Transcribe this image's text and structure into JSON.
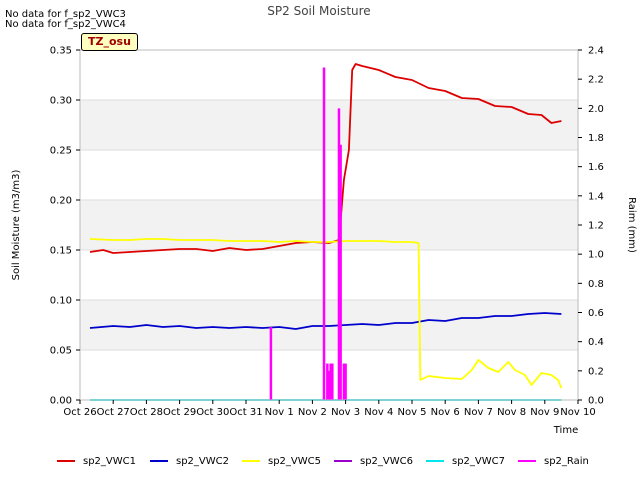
{
  "notes": [
    "No data for f_sp2_VWC3",
    "No data for f_sp2_VWC4"
  ],
  "badge": "TZ_osu",
  "chart_data": {
    "type": "line",
    "title": "SP2 Soil Moisture",
    "xlabel": "Time",
    "ylabel": "Soil Moisture (m3/m3)",
    "y2label": "Raim (mm)",
    "xlim": [
      0,
      15
    ],
    "ylim": [
      0,
      0.35
    ],
    "y2lim": [
      0,
      2.4
    ],
    "x_tick_values": [
      0,
      1,
      2,
      3,
      4,
      5,
      6,
      7,
      8,
      9,
      10,
      11,
      12,
      13,
      14,
      15
    ],
    "x_tick_labels": [
      "Oct 26",
      "Oct 27",
      "Oct 28",
      "Oct 29",
      "Oct 30",
      "Oct 31",
      "Nov 1",
      "Nov 2",
      "Nov 3",
      "Nov 4",
      "Nov 5",
      "Nov 6",
      "Nov 7",
      "Nov 8",
      "Nov 9",
      "Nov 10"
    ],
    "y_ticks": [
      0.0,
      0.05,
      0.1,
      0.15,
      0.2,
      0.25,
      0.3,
      0.35
    ],
    "y_tick_labels": [
      "0.00",
      "0.05",
      "0.10",
      "0.15",
      "0.20",
      "0.25",
      "0.30",
      "0.35"
    ],
    "y2_ticks": [
      0.0,
      0.2,
      0.4,
      0.6,
      0.8,
      1.0,
      1.2,
      1.4,
      1.6,
      1.8,
      2.0,
      2.2,
      2.4
    ],
    "y2_tick_labels": [
      "0.0",
      "0.2",
      "0.4",
      "0.6",
      "0.8",
      "1.0",
      "1.2",
      "1.4",
      "1.6",
      "1.8",
      "2.0",
      "2.2",
      "2.4"
    ],
    "grid": "horizontal bands",
    "legend_position": "bottom",
    "series": [
      {
        "name": "sp2_VWC1",
        "color": "#dd0000",
        "axis": "left",
        "x": [
          0.3,
          0.7,
          1.0,
          1.5,
          2.0,
          2.5,
          3.0,
          3.5,
          4.0,
          4.5,
          5.0,
          5.5,
          6.0,
          6.5,
          7.0,
          7.5,
          7.8,
          7.95,
          8.1,
          8.2,
          8.3,
          8.5,
          9.0,
          9.5,
          10.0,
          10.5,
          11.0,
          11.5,
          12.0,
          12.5,
          13.0,
          13.5,
          13.9,
          14.2,
          14.5
        ],
        "values": [
          0.148,
          0.15,
          0.147,
          0.148,
          0.149,
          0.15,
          0.151,
          0.151,
          0.149,
          0.152,
          0.15,
          0.151,
          0.154,
          0.157,
          0.158,
          0.157,
          0.16,
          0.22,
          0.25,
          0.33,
          0.336,
          0.334,
          0.33,
          0.323,
          0.32,
          0.312,
          0.309,
          0.302,
          0.301,
          0.294,
          0.293,
          0.286,
          0.285,
          0.277,
          0.279
        ]
      },
      {
        "name": "sp2_VWC2",
        "color": "#0000cc",
        "axis": "left",
        "x": [
          0.3,
          1.0,
          1.5,
          2.0,
          2.5,
          3.0,
          3.5,
          4.0,
          4.5,
          5.0,
          5.5,
          6.0,
          6.5,
          7.0,
          7.5,
          8.0,
          8.5,
          9.0,
          9.5,
          10.0,
          10.5,
          11.0,
          11.5,
          12.0,
          12.5,
          13.0,
          13.5,
          14.0,
          14.5
        ],
        "values": [
          0.072,
          0.074,
          0.073,
          0.075,
          0.073,
          0.074,
          0.072,
          0.073,
          0.072,
          0.073,
          0.072,
          0.073,
          0.071,
          0.074,
          0.074,
          0.075,
          0.076,
          0.075,
          0.077,
          0.077,
          0.08,
          0.079,
          0.082,
          0.082,
          0.084,
          0.084,
          0.086,
          0.087,
          0.086
        ]
      },
      {
        "name": "sp2_VWC5",
        "color": "#ffff00",
        "axis": "left",
        "x": [
          0.3,
          1.0,
          1.5,
          2.0,
          2.5,
          3.0,
          3.5,
          4.0,
          4.5,
          5.0,
          5.5,
          6.0,
          6.5,
          7.0,
          7.5,
          8.0,
          8.5,
          9.0,
          9.5,
          10.0,
          10.2,
          10.25,
          10.5,
          11.0,
          11.5,
          11.8,
          12.0,
          12.3,
          12.6,
          12.9,
          13.1,
          13.4,
          13.6,
          13.9,
          14.2,
          14.4,
          14.5
        ],
        "values": [
          0.161,
          0.16,
          0.16,
          0.161,
          0.161,
          0.16,
          0.16,
          0.16,
          0.159,
          0.159,
          0.159,
          0.158,
          0.159,
          0.158,
          0.158,
          0.159,
          0.159,
          0.159,
          0.158,
          0.158,
          0.157,
          0.02,
          0.024,
          0.022,
          0.021,
          0.03,
          0.04,
          0.032,
          0.028,
          0.038,
          0.03,
          0.025,
          0.015,
          0.027,
          0.025,
          0.02,
          0.012
        ]
      },
      {
        "name": "sp2_VWC6",
        "color": "#9900cc",
        "axis": "left",
        "x": [],
        "values": []
      },
      {
        "name": "sp2_VWC7",
        "color": "#00e5ee",
        "axis": "left",
        "x": [
          0.3,
          14.5
        ],
        "values": [
          0.0,
          0.0
        ]
      },
      {
        "name": "sp2_Rain",
        "color": "#ff00ff",
        "axis": "right",
        "style": "impulse",
        "x": [
          5.75,
          7.35,
          7.45,
          7.5,
          7.55,
          7.6,
          7.8,
          7.85,
          7.95,
          8.0
        ],
        "values": [
          0.5,
          2.28,
          0.25,
          0.2,
          0.25,
          0.25,
          2.0,
          1.75,
          0.25,
          0.25
        ]
      }
    ]
  }
}
